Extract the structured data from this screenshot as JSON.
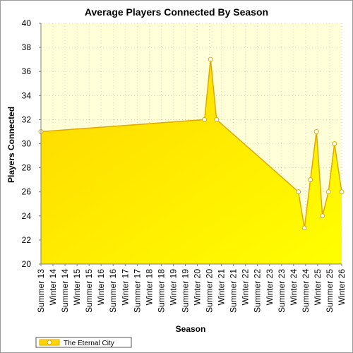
{
  "chart_data": {
    "type": "area",
    "title": "Average Players Connected By Season",
    "xlabel": "Season",
    "ylabel": "Players Connected",
    "ylim": [
      20,
      40
    ],
    "yticks": [
      20,
      22,
      24,
      26,
      28,
      30,
      32,
      34,
      36,
      38,
      40
    ],
    "categories": [
      "Summer 13",
      "Winter 14",
      "Summer 14",
      "Winter 15",
      "Summer 15",
      "Winter 16",
      "Summer 16",
      "Winter 17",
      "Summer 17",
      "Winter 18",
      "Summer 18",
      "Winter 19",
      "Summer 19",
      "Winter 20",
      "Summer 20",
      "Winter 21",
      "Summer 21",
      "Winter 22",
      "Summer 22",
      "Winter 23",
      "Summer 23",
      "Winter 24",
      "Summer 24",
      "Winter 25",
      "Summer 25",
      "Winter 26"
    ],
    "series": [
      {
        "name": "The Eternal City",
        "points": [
          {
            "x": 0,
            "y": 31
          },
          {
            "x": 13.6,
            "y": 32
          },
          {
            "x": 14.1,
            "y": 37
          },
          {
            "x": 14.6,
            "y": 32
          },
          {
            "x": 21.4,
            "y": 26
          },
          {
            "x": 21.9,
            "y": 23
          },
          {
            "x": 22.4,
            "y": 27
          },
          {
            "x": 22.9,
            "y": 31
          },
          {
            "x": 23.4,
            "y": 24
          },
          {
            "x": 23.9,
            "y": 26
          },
          {
            "x": 24.4,
            "y": 30
          },
          {
            "x": 25,
            "y": 26
          }
        ]
      }
    ],
    "grid": true,
    "legend_position": "bottom-left",
    "colors": {
      "plot_bg": "#ffffd8",
      "area_top": "#ffd700",
      "area_bottom": "#ffff00",
      "line": "#e1a800",
      "marker_fill": "#ffffff",
      "grid": "#c8c8a0"
    }
  }
}
